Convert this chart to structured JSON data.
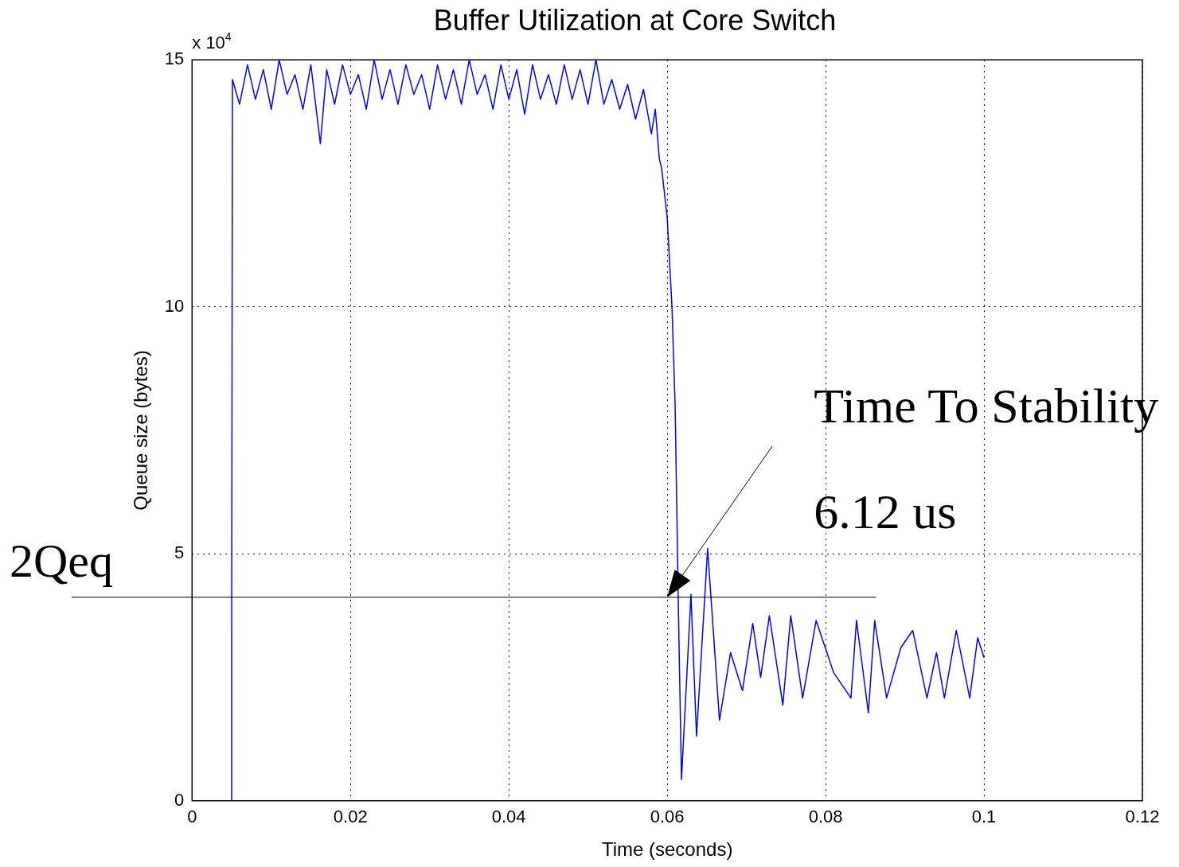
{
  "chart_data": {
    "type": "line",
    "title": "Buffer Utilization at Core Switch",
    "xlabel": "Time (seconds)",
    "ylabel": "Queue size (bytes)",
    "xlim": [
      0,
      0.12
    ],
    "xticks": [
      0,
      0.02,
      0.04,
      0.06,
      0.08,
      {
        "value": 0.1,
        "label": "0.1"
      },
      0.12
    ],
    "ylim": [
      0,
      15
    ],
    "yticks": [
      0,
      5,
      10,
      15
    ],
    "grid": true,
    "marker": "none",
    "line_style": "solid",
    "ref_lines": [
      {
        "axis": "y",
        "value": 4.12,
        "label": "2Qeq",
        "color": "#000000"
      }
    ],
    "annotations": [
      "x 10$^{4}$",
      "Time To Stability",
      "6.12 us"
    ],
    "series": [
      {
        "color": "#0000ff",
        "x": [
          0.005,
          0.005,
          0.0051,
          0.006,
          0.007,
          0.008,
          0.009,
          0.01,
          0.011,
          0.012,
          0.013,
          0.014,
          0.015,
          0.0162,
          0.017,
          0.018,
          0.019,
          0.02,
          0.021,
          0.022,
          0.023,
          0.024,
          0.025,
          0.026,
          0.027,
          0.028,
          0.029,
          0.03,
          0.031,
          0.032,
          0.033,
          0.034,
          0.035,
          0.036,
          0.037,
          0.038,
          0.039,
          0.04,
          0.041,
          0.042,
          0.043,
          0.044,
          0.045,
          0.046,
          0.047,
          0.048,
          0.049,
          0.05,
          0.051,
          0.052,
          0.053,
          0.054,
          0.055,
          0.056,
          0.057,
          0.058,
          0.0585,
          0.059,
          0.0593,
          0.06,
          0.0606,
          0.061,
          0.0614,
          0.0618,
          0.063,
          0.0637,
          0.0651,
          0.0666,
          0.068,
          0.0695,
          0.0708,
          0.0718,
          0.0729,
          0.0746,
          0.0756,
          0.0771,
          0.0788,
          0.081,
          0.0832,
          0.0839,
          0.0854,
          0.0862,
          0.0877,
          0.0895,
          0.091,
          0.0928,
          0.094,
          0.095,
          0.0965,
          0.0982,
          0.0992,
          0.1
        ],
        "values": [
          0,
          3.4,
          14.6,
          14.1,
          14.9,
          14.2,
          14.8,
          14.0,
          15.0,
          14.3,
          14.7,
          14.0,
          14.9,
          13.3,
          14.8,
          14.1,
          14.9,
          14.3,
          14.7,
          14.0,
          15.0,
          14.2,
          14.8,
          14.1,
          14.9,
          14.3,
          14.7,
          14.0,
          14.9,
          14.2,
          14.8,
          14.1,
          15.0,
          14.3,
          14.7,
          14.0,
          14.9,
          14.2,
          14.8,
          13.9,
          14.9,
          14.2,
          14.7,
          14.1,
          14.9,
          14.2,
          14.8,
          14.1,
          15.0,
          14.1,
          14.6,
          14.0,
          14.5,
          13.8,
          14.4,
          13.5,
          14.0,
          13.0,
          12.8,
          11.8,
          10.0,
          8.0,
          4.0,
          0.43,
          4.18,
          1.31,
          5.11,
          1.63,
          3.0,
          2.23,
          3.59,
          2.5,
          3.75,
          1.94,
          3.75,
          2.08,
          3.65,
          2.6,
          2.08,
          3.65,
          1.78,
          3.65,
          2.08,
          3.1,
          3.45,
          2.08,
          3.0,
          2.08,
          3.45,
          2.08,
          3.3,
          2.9
        ]
      }
    ]
  }
}
